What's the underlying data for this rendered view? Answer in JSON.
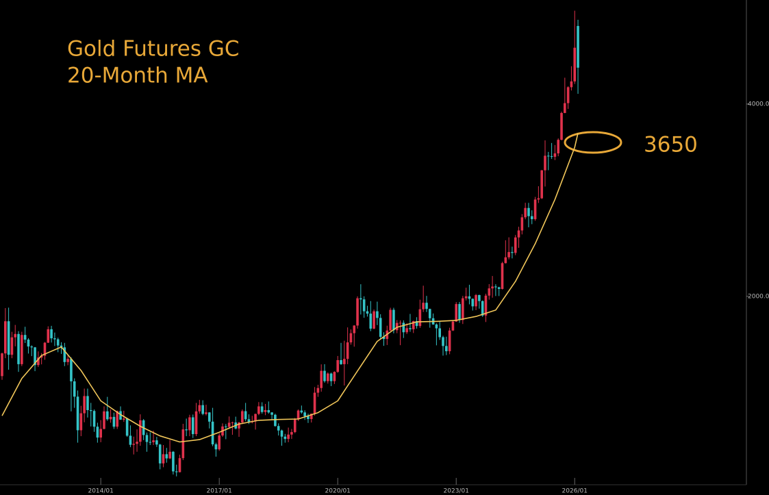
{
  "chart_data": {
    "type": "candlestick",
    "title": "Gold Futures GC",
    "subtitle": "20-Month MA",
    "log_scale": true,
    "grid": false,
    "up_color": "#e0324c",
    "down_color": "#35c4c8",
    "ylim": [
      1014,
      5820
    ],
    "yticks": [
      {
        "value": 2000,
        "label": "2000.0"
      },
      {
        "value": 4000,
        "label": "4000.0"
      }
    ],
    "xticks": [
      "2014/01",
      "2017/01",
      "2020/01",
      "2023/01",
      "2026/01"
    ],
    "x": [
      "2011/07",
      "2011/08",
      "2011/09",
      "2011/10",
      "2011/11",
      "2011/12",
      "2012/01",
      "2012/02",
      "2012/03",
      "2012/04",
      "2012/05",
      "2012/06",
      "2012/07",
      "2012/08",
      "2012/09",
      "2012/10",
      "2012/11",
      "2012/12",
      "2013/01",
      "2013/02",
      "2013/03",
      "2013/04",
      "2013/05",
      "2013/06",
      "2013/07",
      "2013/08",
      "2013/09",
      "2013/10",
      "2013/11",
      "2013/12",
      "2014/01",
      "2014/02",
      "2014/03",
      "2014/04",
      "2014/05",
      "2014/06",
      "2014/07",
      "2014/08",
      "2014/09",
      "2014/10",
      "2014/11",
      "2014/12",
      "2015/01",
      "2015/02",
      "2015/03",
      "2015/04",
      "2015/05",
      "2015/06",
      "2015/07",
      "2015/08",
      "2015/09",
      "2015/10",
      "2015/11",
      "2015/12",
      "2016/01",
      "2016/02",
      "2016/03",
      "2016/04",
      "2016/05",
      "2016/06",
      "2016/07",
      "2016/08",
      "2016/09",
      "2016/10",
      "2016/11",
      "2016/12",
      "2017/01",
      "2017/02",
      "2017/03",
      "2017/04",
      "2017/05",
      "2017/06",
      "2017/07",
      "2017/08",
      "2017/09",
      "2017/10",
      "2017/11",
      "2017/12",
      "2018/01",
      "2018/02",
      "2018/03",
      "2018/04",
      "2018/05",
      "2018/06",
      "2018/07",
      "2018/08",
      "2018/09",
      "2018/10",
      "2018/11",
      "2018/12",
      "2019/01",
      "2019/02",
      "2019/03",
      "2019/04",
      "2019/05",
      "2019/06",
      "2019/07",
      "2019/08",
      "2019/09",
      "2019/10",
      "2019/11",
      "2019/12",
      "2020/01",
      "2020/02",
      "2020/03",
      "2020/04",
      "2020/05",
      "2020/06",
      "2020/07",
      "2020/08",
      "2020/09",
      "2020/10",
      "2020/11",
      "2020/12",
      "2021/01",
      "2021/02",
      "2021/03",
      "2021/04",
      "2021/05",
      "2021/06",
      "2021/07",
      "2021/08",
      "2021/09",
      "2021/10",
      "2021/11",
      "2021/12",
      "2022/01",
      "2022/02",
      "2022/03",
      "2022/04",
      "2022/05",
      "2022/06",
      "2022/07",
      "2022/08",
      "2022/09",
      "2022/10",
      "2022/11",
      "2022/12",
      "2023/01",
      "2023/02",
      "2023/03",
      "2023/04",
      "2023/05",
      "2023/06",
      "2023/07",
      "2023/08",
      "2023/09",
      "2023/10",
      "2023/11",
      "2023/12",
      "2024/01",
      "2024/02",
      "2024/03",
      "2024/04",
      "2024/05",
      "2024/06",
      "2024/07",
      "2024/08",
      "2024/09",
      "2024/10",
      "2024/11",
      "2024/12",
      "2025/01",
      "2025/02",
      "2025/03",
      "2025/04",
      "2025/05",
      "2025/06",
      "2025/07",
      "2025/08",
      "2025/09",
      "2025/10",
      "2025/11",
      "2025/12",
      "2026/01",
      "2026/02"
    ],
    "ohlc": [
      [
        1500,
        1632,
        1480,
        1628
      ],
      [
        1628,
        1917,
        1600,
        1828
      ],
      [
        1828,
        1920,
        1535,
        1620
      ],
      [
        1620,
        1760,
        1600,
        1725
      ],
      [
        1725,
        1804,
        1670,
        1746
      ],
      [
        1746,
        1764,
        1523,
        1566
      ],
      [
        1566,
        1760,
        1555,
        1740
      ],
      [
        1740,
        1792,
        1690,
        1711
      ],
      [
        1711,
        1720,
        1627,
        1669
      ],
      [
        1669,
        1676,
        1612,
        1664
      ],
      [
        1664,
        1666,
        1527,
        1561
      ],
      [
        1561,
        1640,
        1550,
        1604
      ],
      [
        1604,
        1630,
        1565,
        1614
      ],
      [
        1614,
        1696,
        1591,
        1692
      ],
      [
        1692,
        1795,
        1690,
        1776
      ],
      [
        1776,
        1798,
        1693,
        1719
      ],
      [
        1719,
        1755,
        1672,
        1713
      ],
      [
        1713,
        1723,
        1635,
        1675
      ],
      [
        1675,
        1695,
        1625,
        1664
      ],
      [
        1664,
        1691,
        1555,
        1578
      ],
      [
        1578,
        1616,
        1560,
        1596
      ],
      [
        1596,
        1605,
        1321,
        1472
      ],
      [
        1472,
        1488,
        1338,
        1393
      ],
      [
        1393,
        1424,
        1180,
        1234
      ],
      [
        1234,
        1348,
        1208,
        1312
      ],
      [
        1312,
        1434,
        1270,
        1396
      ],
      [
        1396,
        1434,
        1292,
        1327
      ],
      [
        1327,
        1362,
        1251,
        1323
      ],
      [
        1323,
        1330,
        1227,
        1250
      ],
      [
        1250,
        1268,
        1180,
        1202
      ],
      [
        1202,
        1280,
        1182,
        1240
      ],
      [
        1240,
        1345,
        1238,
        1321
      ],
      [
        1321,
        1392,
        1277,
        1284
      ],
      [
        1284,
        1331,
        1268,
        1295
      ],
      [
        1295,
        1315,
        1240,
        1250
      ],
      [
        1250,
        1325,
        1240,
        1322
      ],
      [
        1322,
        1345,
        1281,
        1282
      ],
      [
        1282,
        1324,
        1272,
        1287
      ],
      [
        1287,
        1290,
        1205,
        1210
      ],
      [
        1210,
        1256,
        1161,
        1171
      ],
      [
        1171,
        1206,
        1131,
        1175
      ],
      [
        1175,
        1238,
        1142,
        1184
      ],
      [
        1184,
        1307,
        1167,
        1279
      ],
      [
        1279,
        1285,
        1191,
        1213
      ],
      [
        1213,
        1224,
        1142,
        1183
      ],
      [
        1183,
        1225,
        1170,
        1182
      ],
      [
        1182,
        1232,
        1170,
        1190
      ],
      [
        1190,
        1205,
        1162,
        1172
      ],
      [
        1172,
        1175,
        1072,
        1095
      ],
      [
        1095,
        1170,
        1080,
        1132
      ],
      [
        1132,
        1158,
        1098,
        1115
      ],
      [
        1115,
        1192,
        1112,
        1142
      ],
      [
        1142,
        1145,
        1052,
        1064
      ],
      [
        1064,
        1090,
        1045,
        1061
      ],
      [
        1061,
        1130,
        1060,
        1116
      ],
      [
        1116,
        1263,
        1108,
        1238
      ],
      [
        1238,
        1287,
        1208,
        1234
      ],
      [
        1234,
        1305,
        1208,
        1293
      ],
      [
        1293,
        1306,
        1200,
        1217
      ],
      [
        1217,
        1362,
        1208,
        1321
      ],
      [
        1321,
        1377,
        1310,
        1351
      ],
      [
        1351,
        1375,
        1303,
        1309
      ],
      [
        1309,
        1353,
        1302,
        1316
      ],
      [
        1316,
        1317,
        1242,
        1273
      ],
      [
        1273,
        1338,
        1165,
        1173
      ],
      [
        1173,
        1180,
        1122,
        1152
      ],
      [
        1152,
        1220,
        1146,
        1211
      ],
      [
        1211,
        1265,
        1205,
        1251
      ],
      [
        1251,
        1262,
        1195,
        1249
      ],
      [
        1249,
        1297,
        1241,
        1268
      ],
      [
        1268,
        1273,
        1214,
        1269
      ],
      [
        1269,
        1296,
        1238,
        1242
      ],
      [
        1242,
        1272,
        1205,
        1269
      ],
      [
        1269,
        1330,
        1262,
        1322
      ],
      [
        1322,
        1362,
        1275,
        1284
      ],
      [
        1284,
        1307,
        1262,
        1270
      ],
      [
        1270,
        1300,
        1265,
        1275
      ],
      [
        1275,
        1310,
        1237,
        1309
      ],
      [
        1309,
        1366,
        1303,
        1345
      ],
      [
        1345,
        1365,
        1310,
        1318
      ],
      [
        1318,
        1357,
        1303,
        1327
      ],
      [
        1327,
        1369,
        1310,
        1316
      ],
      [
        1316,
        1317,
        1282,
        1305
      ],
      [
        1305,
        1310,
        1250,
        1253
      ],
      [
        1253,
        1265,
        1211,
        1233
      ],
      [
        1233,
        1237,
        1167,
        1206
      ],
      [
        1206,
        1218,
        1180,
        1196
      ],
      [
        1196,
        1246,
        1182,
        1215
      ],
      [
        1215,
        1240,
        1196,
        1226
      ],
      [
        1226,
        1290,
        1221,
        1283
      ],
      [
        1283,
        1330,
        1276,
        1325
      ],
      [
        1325,
        1349,
        1310,
        1316
      ],
      [
        1316,
        1326,
        1281,
        1298
      ],
      [
        1298,
        1310,
        1267,
        1285
      ],
      [
        1285,
        1310,
        1269,
        1310
      ],
      [
        1310,
        1442,
        1301,
        1413
      ],
      [
        1413,
        1454,
        1392,
        1437
      ],
      [
        1437,
        1565,
        1418,
        1529
      ],
      [
        1529,
        1566,
        1465,
        1473
      ],
      [
        1473,
        1520,
        1460,
        1514
      ],
      [
        1514,
        1519,
        1447,
        1473
      ],
      [
        1473,
        1526,
        1458,
        1523
      ],
      [
        1523,
        1613,
        1518,
        1589
      ],
      [
        1589,
        1691,
        1562,
        1566
      ],
      [
        1566,
        1704,
        1450,
        1596
      ],
      [
        1596,
        1788,
        1566,
        1694
      ],
      [
        1694,
        1775,
        1680,
        1751
      ],
      [
        1751,
        1802,
        1668,
        1800
      ],
      [
        1800,
        2000,
        1780,
        1986
      ],
      [
        1986,
        2089,
        1873,
        1978
      ],
      [
        1978,
        2000,
        1851,
        1895
      ],
      [
        1895,
        1933,
        1859,
        1879
      ],
      [
        1879,
        1966,
        1764,
        1780
      ],
      [
        1780,
        1907,
        1776,
        1895
      ],
      [
        1895,
        1962,
        1803,
        1850
      ],
      [
        1850,
        1875,
        1717,
        1728
      ],
      [
        1728,
        1757,
        1673,
        1715
      ],
      [
        1715,
        1799,
        1678,
        1768
      ],
      [
        1768,
        1919,
        1766,
        1905
      ],
      [
        1905,
        1919,
        1750,
        1770
      ],
      [
        1770,
        1836,
        1751,
        1817
      ],
      [
        1817,
        1834,
        1677,
        1818
      ],
      [
        1818,
        1834,
        1721,
        1757
      ],
      [
        1757,
        1814,
        1746,
        1783
      ],
      [
        1783,
        1877,
        1760,
        1776
      ],
      [
        1776,
        1832,
        1752,
        1829
      ],
      [
        1829,
        1855,
        1780,
        1797
      ],
      [
        1797,
        1976,
        1785,
        1909
      ],
      [
        1909,
        2078,
        1890,
        1954
      ],
      [
        1954,
        2003,
        1890,
        1911
      ],
      [
        1911,
        1913,
        1786,
        1848
      ],
      [
        1848,
        1880,
        1805,
        1807
      ],
      [
        1807,
        1814,
        1676,
        1782
      ],
      [
        1782,
        1824,
        1709,
        1726
      ],
      [
        1726,
        1735,
        1615,
        1672
      ],
      [
        1672,
        1729,
        1618,
        1641
      ],
      [
        1641,
        1786,
        1623,
        1768
      ],
      [
        1768,
        1833,
        1765,
        1826
      ],
      [
        1826,
        1959,
        1824,
        1945
      ],
      [
        1945,
        1960,
        1818,
        1836
      ],
      [
        1836,
        2003,
        1810,
        1986
      ],
      [
        1986,
        2063,
        1970,
        2000
      ],
      [
        2000,
        2085,
        1943,
        1982
      ],
      [
        1982,
        1985,
        1900,
        1929
      ],
      [
        1929,
        2017,
        1903,
        2009
      ],
      [
        2009,
        2012,
        1913,
        1966
      ],
      [
        1966,
        1970,
        1857,
        1866
      ],
      [
        1866,
        2019,
        1823,
        2005
      ],
      [
        2005,
        2090,
        1976,
        2058
      ],
      [
        2058,
        2152,
        1990,
        2072
      ],
      [
        2072,
        2089,
        2002,
        2066
      ],
      [
        2066,
        2070,
        2002,
        2054
      ],
      [
        2054,
        2265,
        2050,
        2254
      ],
      [
        2254,
        2448,
        2251,
        2302
      ],
      [
        2302,
        2474,
        2285,
        2346
      ],
      [
        2346,
        2392,
        2293,
        2339
      ],
      [
        2339,
        2495,
        2320,
        2473
      ],
      [
        2473,
        2570,
        2382,
        2536
      ],
      [
        2536,
        2690,
        2500,
        2659
      ],
      [
        2659,
        2802,
        2640,
        2750
      ],
      [
        2750,
        2801,
        2565,
        2670
      ],
      [
        2670,
        2727,
        2594,
        2641
      ],
      [
        2641,
        2862,
        2626,
        2835
      ],
      [
        2835,
        2974,
        2800,
        2848
      ],
      [
        2848,
        3154,
        2840,
        3150
      ],
      [
        3150,
        3509,
        2971,
        3320
      ],
      [
        3320,
        3366,
        3151,
        3315
      ],
      [
        3315,
        3476,
        3282,
        3307
      ],
      [
        3307,
        3451,
        3268,
        3348
      ],
      [
        3348,
        3534,
        3314,
        3516
      ],
      [
        3516,
        3892,
        3509,
        3873
      ],
      [
        3873,
        4398,
        3870,
        4013
      ],
      [
        4013,
        4265,
        3930,
        4250
      ],
      [
        4250,
        4584,
        4200,
        4340
      ],
      [
        4340,
        5600,
        4300,
        4900
      ],
      [
        5300,
        5420,
        4150,
        4560
      ]
    ],
    "series": [
      {
        "name": "20-Month MA",
        "color": "#f2c75a",
        "x": [
          "2011/07",
          "2012/01",
          "2012/07",
          "2013/01",
          "2013/07",
          "2014/01",
          "2014/07",
          "2015/01",
          "2015/07",
          "2016/01",
          "2016/07",
          "2017/01",
          "2017/07",
          "2018/01",
          "2018/07",
          "2019/01",
          "2019/07",
          "2020/01",
          "2020/07",
          "2021/01",
          "2021/07",
          "2022/01",
          "2022/07",
          "2023/01",
          "2023/07",
          "2024/01",
          "2024/07",
          "2025/01",
          "2025/07",
          "2026/01",
          "2026/02"
        ],
        "values": [
          1300,
          1487,
          1616,
          1666,
          1531,
          1372,
          1306,
          1252,
          1209,
          1183,
          1193,
          1225,
          1262,
          1279,
          1283,
          1285,
          1315,
          1372,
          1528,
          1700,
          1789,
          1824,
          1827,
          1834,
          1860,
          1903,
          2110,
          2418,
          2836,
          3420,
          3600
        ]
      }
    ],
    "annotations": [
      {
        "text": "3650"
      }
    ]
  }
}
